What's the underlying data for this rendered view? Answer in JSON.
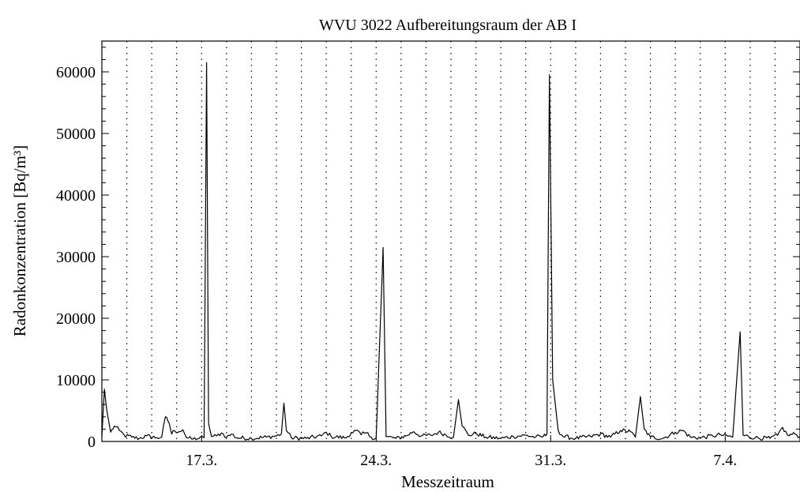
{
  "chart_data": {
    "type": "line",
    "title": "WVU 3022 Aufbereitungsraum der AB I",
    "xlabel": "Messzeitraum",
    "ylabel": "Radonkonzentration [Bq/m³]",
    "x_range_days": [
      0,
      28
    ],
    "x_ticks": [
      {
        "day": 4,
        "label": "17.3."
      },
      {
        "day": 11,
        "label": "24.3."
      },
      {
        "day": 18,
        "label": "31.3."
      },
      {
        "day": 25,
        "label": "7.4."
      }
    ],
    "ylim": [
      0,
      65000
    ],
    "y_ticks": [
      0,
      10000,
      20000,
      30000,
      40000,
      50000,
      60000
    ],
    "grid": {
      "x": "dotted",
      "y": false
    },
    "baseline": 500,
    "series": [
      {
        "points": [
          [
            0.0,
            800
          ],
          [
            0.1,
            8500
          ],
          [
            0.2,
            5000
          ],
          [
            0.35,
            1500
          ],
          [
            0.5,
            2500
          ],
          [
            0.7,
            1800
          ],
          [
            0.9,
            1000
          ],
          [
            1.2,
            700
          ],
          [
            1.5,
            500
          ],
          [
            1.8,
            900
          ],
          [
            2.2,
            600
          ],
          [
            2.4,
            700
          ],
          [
            2.55,
            4000
          ],
          [
            2.7,
            3000
          ],
          [
            2.8,
            1200
          ],
          [
            2.9,
            1800
          ],
          [
            3.1,
            1600
          ],
          [
            3.25,
            1900
          ],
          [
            3.4,
            600
          ],
          [
            3.6,
            400
          ],
          [
            3.9,
            500
          ],
          [
            4.1,
            600
          ],
          [
            4.2,
            61500
          ],
          [
            4.28,
            3000
          ],
          [
            4.4,
            800
          ],
          [
            4.6,
            900
          ],
          [
            4.8,
            1400
          ],
          [
            5.0,
            700
          ],
          [
            5.2,
            1200
          ],
          [
            5.4,
            600
          ],
          [
            6.0,
            500
          ],
          [
            6.6,
            700
          ],
          [
            7.0,
            900
          ],
          [
            7.2,
            1200
          ],
          [
            7.3,
            6200
          ],
          [
            7.4,
            1800
          ],
          [
            7.6,
            600
          ],
          [
            8.2,
            500
          ],
          [
            8.8,
            900
          ],
          [
            9.0,
            1500
          ],
          [
            9.2,
            800
          ],
          [
            9.8,
            600
          ],
          [
            10.0,
            1400
          ],
          [
            10.2,
            1800
          ],
          [
            10.4,
            1100
          ],
          [
            10.6,
            1400
          ],
          [
            10.8,
            700
          ],
          [
            11.0,
            500
          ],
          [
            11.28,
            31500
          ],
          [
            11.4,
            800
          ],
          [
            11.8,
            500
          ],
          [
            12.2,
            900
          ],
          [
            12.5,
            1600
          ],
          [
            12.8,
            900
          ],
          [
            13.2,
            1000
          ],
          [
            13.5,
            1500
          ],
          [
            14.1,
            700
          ],
          [
            14.3,
            6800
          ],
          [
            14.45,
            2500
          ],
          [
            14.7,
            1000
          ],
          [
            15.0,
            1300
          ],
          [
            15.4,
            700
          ],
          [
            16.0,
            500
          ],
          [
            16.5,
            800
          ],
          [
            17.0,
            1000
          ],
          [
            17.4,
            700
          ],
          [
            17.7,
            800
          ],
          [
            17.85,
            1200
          ],
          [
            17.95,
            59500
          ],
          [
            18.08,
            10000
          ],
          [
            18.3,
            1800
          ],
          [
            18.5,
            800
          ],
          [
            19.0,
            500
          ],
          [
            19.6,
            800
          ],
          [
            20.0,
            1200
          ],
          [
            20.4,
            700
          ],
          [
            20.8,
            1800
          ],
          [
            21.2,
            1600
          ],
          [
            21.4,
            700
          ],
          [
            21.6,
            7300
          ],
          [
            21.75,
            2000
          ],
          [
            22.0,
            700
          ],
          [
            22.5,
            500
          ],
          [
            23.0,
            1500
          ],
          [
            23.3,
            1800
          ],
          [
            23.6,
            700
          ],
          [
            24.0,
            600
          ],
          [
            24.5,
            900
          ],
          [
            24.8,
            1100
          ],
          [
            25.3,
            700
          ],
          [
            25.6,
            17800
          ],
          [
            25.72,
            1000
          ],
          [
            26.2,
            600
          ],
          [
            26.8,
            500
          ],
          [
            27.1,
            1000
          ],
          [
            27.3,
            2300
          ],
          [
            27.5,
            1000
          ],
          [
            27.8,
            1200
          ],
          [
            28.0,
            800
          ]
        ]
      }
    ]
  }
}
